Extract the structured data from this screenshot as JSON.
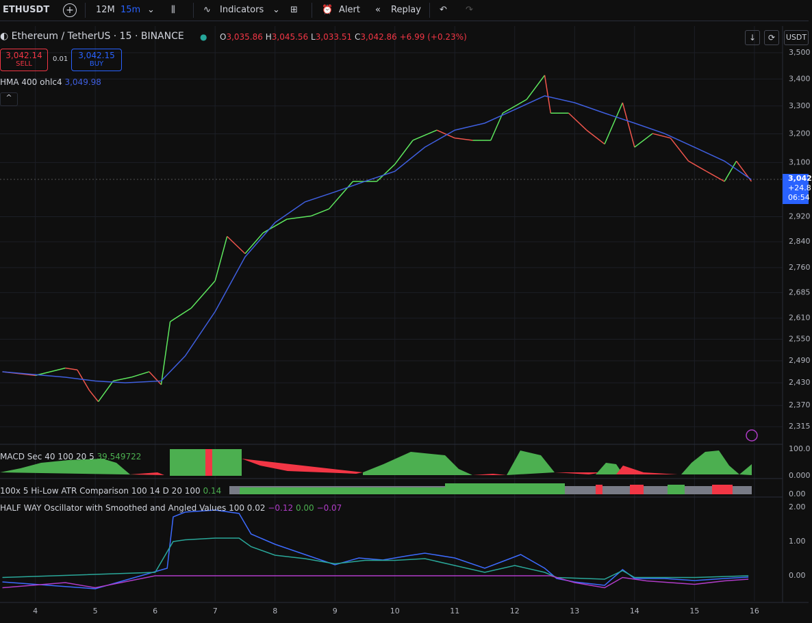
{
  "toolbar": {
    "symbol": "ETHUSDT",
    "range": "12M",
    "interval": "15m",
    "indicators": "Indicators",
    "alert": "Alert",
    "replay": "Replay",
    "currency": "USDT"
  },
  "legend": {
    "title": "Ethereum / TetherUS · 15 · BINANCE",
    "open_label": "O",
    "open": "3,035.86",
    "high_label": "H",
    "high": "3,045.56",
    "low_label": "L",
    "low": "3,033.51",
    "close_label": "C",
    "close": "3,042.86",
    "change": "+6.99 (+0.23%)"
  },
  "trade": {
    "sell_price": "3,042.14",
    "sell": "SELL",
    "spread": "0.01",
    "buy_price": "3,042.15",
    "buy": "BUY"
  },
  "hma_value": "3,049.98",
  "last_price": {
    "price": "3,042",
    "change": "+24.8",
    "countdown": "06:54"
  },
  "macd": {
    "title": "MACD Sec 40 100 20 5",
    "value": "39.549722",
    "yticks": [
      "100.0",
      "0.000"
    ]
  },
  "atr": {
    "title": "100x 5 Hi-Low ATR Comparison 100 14 D 20 100",
    "value": "0.14",
    "yticks": [
      "0.00"
    ]
  },
  "halfway": {
    "title": "HALF WAY Oscillator with Smoothed and Angled Values 100 0.02",
    "values": [
      "−0.12",
      "0.00",
      "−0.07"
    ]
  },
  "chart_data": [
    {
      "type": "line",
      "log_scale": true,
      "xlim": [
        3.41,
        16.47
      ],
      "xticks": [
        4,
        5,
        6,
        7,
        8,
        9,
        10,
        11,
        12,
        13,
        14,
        15,
        16
      ],
      "ylim": [
        2272,
        3605
      ],
      "yticks": [
        {
          "value": 3500,
          "label": "3,500"
        },
        {
          "value": 3400,
          "label": "3,400"
        },
        {
          "value": 3300,
          "label": "3,300"
        },
        {
          "value": 3200,
          "label": "3,200"
        },
        {
          "value": 3100,
          "label": "3,100"
        },
        {
          "value": 2920,
          "label": "2,920"
        },
        {
          "value": 2840,
          "label": "2,840"
        },
        {
          "value": 2760,
          "label": "2,760"
        },
        {
          "value": 2685,
          "label": "2,685"
        },
        {
          "value": 2610,
          "label": "2,610"
        },
        {
          "value": 2550,
          "label": "2,550"
        },
        {
          "value": 2490,
          "label": "2,490"
        },
        {
          "value": 2430,
          "label": "2,430"
        },
        {
          "value": 2370,
          "label": "2,370"
        },
        {
          "value": 2315,
          "label": "2,315"
        }
      ],
      "grid": true,
      "series": [
        {
          "up_color": "#5ee85e",
          "down_color": "#f0554c",
          "x": [
            3.45,
            4.0,
            4.5,
            4.7,
            4.9,
            5.05,
            5.3,
            5.6,
            5.9,
            6.1,
            6.25,
            6.6,
            7.0,
            7.2,
            7.5,
            7.8,
            8.2,
            8.6,
            8.9,
            9.3,
            9.7,
            10.0,
            10.3,
            10.7,
            11.0,
            11.3,
            11.6,
            11.8,
            12.2,
            12.5,
            12.6,
            12.9,
            13.2,
            13.5,
            13.8,
            14.0,
            14.3,
            14.6,
            14.9,
            15.2,
            15.5,
            15.7,
            15.95
          ],
          "values": [
            2460,
            2450,
            2470,
            2465,
            2410,
            2380,
            2435,
            2445,
            2460,
            2425,
            2600,
            2639,
            2720,
            2857,
            2803,
            2868,
            2912,
            2922,
            2945,
            3036,
            3036,
            3094,
            3177,
            3213,
            3185,
            3177,
            3177,
            3274,
            3324,
            3414,
            3274,
            3274,
            3213,
            3164,
            3312,
            3153,
            3201,
            3185,
            3105,
            3070,
            3036,
            3105,
            3036
          ]
        },
        {
          "name": "HMA 400 ohlc4",
          "color": "#3f5fe0",
          "x": [
            3.45,
            4.5,
            5.0,
            5.5,
            6.1,
            6.5,
            7.0,
            7.5,
            8.0,
            8.5,
            9.0,
            9.5,
            10.0,
            10.5,
            11.0,
            11.5,
            12.0,
            12.5,
            13.0,
            13.5,
            14.0,
            14.5,
            15.0,
            15.5,
            15.95
          ],
          "values": [
            2460,
            2445,
            2435,
            2430,
            2435,
            2503,
            2629,
            2793,
            2901,
            2968,
            3001,
            3036,
            3070,
            3153,
            3213,
            3238,
            3287,
            3337,
            3312,
            3274,
            3238,
            3201,
            3153,
            3105,
            3042
          ]
        }
      ]
    },
    {
      "type": "line",
      "xlim": [
        3.41,
        16.47
      ],
      "ylim": [
        -0.74,
        2.26
      ],
      "yticks": [
        {
          "value": 2,
          "label": "2.00"
        },
        {
          "value": 1,
          "label": "1.00"
        },
        {
          "value": 0,
          "label": "0.00"
        }
      ],
      "series": [
        {
          "color": "#3d6bff",
          "x": [
            3.45,
            5.0,
            6.0,
            6.2,
            6.3,
            6.5,
            7.0,
            7.4,
            7.6,
            8.0,
            8.5,
            9.0,
            9.4,
            9.8,
            10.2,
            10.5,
            11.0,
            11.5,
            11.8,
            12.1,
            12.5,
            12.7,
            13.0,
            13.5,
            13.8,
            14.0,
            14.5,
            15.0,
            15.5,
            15.9
          ],
          "values": [
            -0.18,
            -0.38,
            0.12,
            0.22,
            1.72,
            1.86,
            1.92,
            1.82,
            1.22,
            0.92,
            0.62,
            0.32,
            0.52,
            0.46,
            0.58,
            0.66,
            0.52,
            0.22,
            0.42,
            0.62,
            0.22,
            -0.08,
            -0.18,
            -0.28,
            0.18,
            -0.08,
            -0.08,
            -0.14,
            -0.08,
            -0.04
          ]
        },
        {
          "color": "#2aa89a",
          "x": [
            3.45,
            6.0,
            6.3,
            6.5,
            7.0,
            7.4,
            7.6,
            8.0,
            8.5,
            9.0,
            9.5,
            10.0,
            10.5,
            11.0,
            11.5,
            12.0,
            12.5,
            12.7,
            13.5,
            13.8,
            14.0,
            15.0,
            15.9
          ],
          "values": [
            -0.05,
            0.1,
            1.0,
            1.05,
            1.1,
            1.1,
            0.85,
            0.6,
            0.5,
            0.35,
            0.45,
            0.45,
            0.5,
            0.3,
            0.1,
            0.3,
            0.1,
            -0.05,
            -0.1,
            0.15,
            -0.05,
            -0.05,
            0
          ]
        },
        {
          "color": "#b03cc8",
          "x": [
            3.45,
            4.5,
            5.0,
            6.0,
            6.3,
            12.6,
            13.0,
            13.5,
            13.8,
            14.2,
            15.0,
            15.5,
            15.9
          ],
          "values": [
            -0.35,
            -0.2,
            -0.35,
            0.0,
            0.0,
            0.0,
            -0.2,
            -0.35,
            -0.05,
            -0.15,
            -0.25,
            -0.15,
            -0.1
          ]
        }
      ]
    }
  ]
}
